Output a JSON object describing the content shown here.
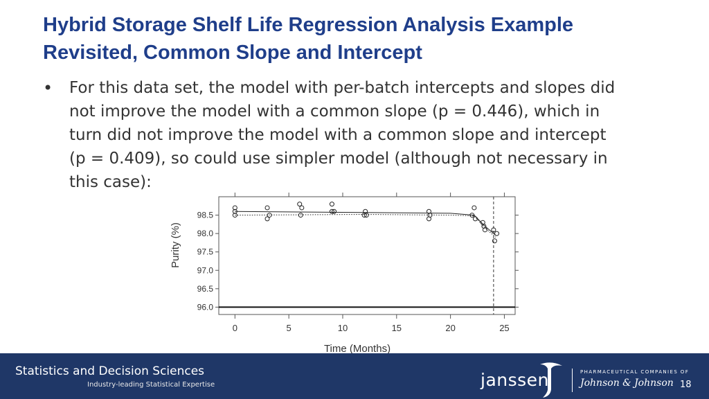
{
  "slide": {
    "title_lines": [
      "Hybrid Storage Shelf Life Regression Analysis Example",
      "Revisited, Common Slope and Intercept"
    ],
    "bullet_lines": [
      "For this data set, the model with per-batch intercepts and slopes did",
      "not improve the model with a common slope (p = 0.446), which in",
      "turn did not improve the model with a common slope and intercept",
      "(p = 0.409), so could use simpler model (although not necessary in",
      "this case):"
    ],
    "bullet_symbol": "•",
    "page_number": "18"
  },
  "footer": {
    "department": "Statistics and Decision Sciences",
    "tagline": "Industry-leading Statistical Expertise",
    "brand": "janssen",
    "parent_label": "PHARMACEUTICAL COMPANIES OF",
    "parent_company": "Johnson & Johnson",
    "background_color": "#1f3767"
  },
  "colors": {
    "title": "#1f3e8a",
    "text": "#333333"
  },
  "chart_data": {
    "type": "scatter",
    "xlabel": "Time (Months)",
    "ylabel": "Purity (%)",
    "xlim": [
      -1.5,
      26
    ],
    "ylim": [
      95.8,
      99.0
    ],
    "x_ticks": [
      0,
      5,
      10,
      15,
      20,
      25
    ],
    "y_ticks": [
      96.0,
      96.5,
      97.0,
      97.5,
      98.0,
      98.5
    ],
    "y_tick_labels": [
      "96.0",
      "96.5",
      "97.0",
      "97.5",
      "98.0",
      "98.5"
    ],
    "points": [
      [
        0,
        98.7
      ],
      [
        0,
        98.6
      ],
      [
        0,
        98.5
      ],
      [
        3,
        98.7
      ],
      [
        3,
        98.4
      ],
      [
        3.2,
        98.5
      ],
      [
        6,
        98.8
      ],
      [
        6.1,
        98.5
      ],
      [
        6.2,
        98.7
      ],
      [
        9,
        98.8
      ],
      [
        9,
        98.6
      ],
      [
        9.2,
        98.6
      ],
      [
        12,
        98.5
      ],
      [
        12.1,
        98.6
      ],
      [
        12.2,
        98.5
      ],
      [
        18,
        98.6
      ],
      [
        18,
        98.4
      ],
      [
        18.1,
        98.5
      ],
      [
        22,
        98.5
      ],
      [
        22.2,
        98.7
      ],
      [
        22.3,
        98.4
      ],
      [
        23,
        98.3
      ],
      [
        23.2,
        98.1
      ],
      [
        23.1,
        98.2
      ],
      [
        24,
        98.1
      ],
      [
        24.1,
        97.8
      ],
      [
        24.3,
        98.0
      ]
    ],
    "fit_solid": [
      [
        0,
        98.6
      ],
      [
        12,
        98.57
      ],
      [
        20,
        98.55
      ],
      [
        22.2,
        98.5
      ],
      [
        23.2,
        98.2
      ],
      [
        24.2,
        97.95
      ]
    ],
    "fit_dotted": [
      [
        0,
        98.5
      ],
      [
        12,
        98.52
      ],
      [
        20,
        98.5
      ],
      [
        22.2,
        98.48
      ],
      [
        23.2,
        98.15
      ],
      [
        24.2,
        97.9
      ]
    ],
    "spec_limit": 96.0,
    "shelf_life_marker_x": 24,
    "top_tick_x": [
      0,
      5,
      10,
      15,
      20,
      25
    ],
    "grid": false,
    "legend": "none"
  }
}
